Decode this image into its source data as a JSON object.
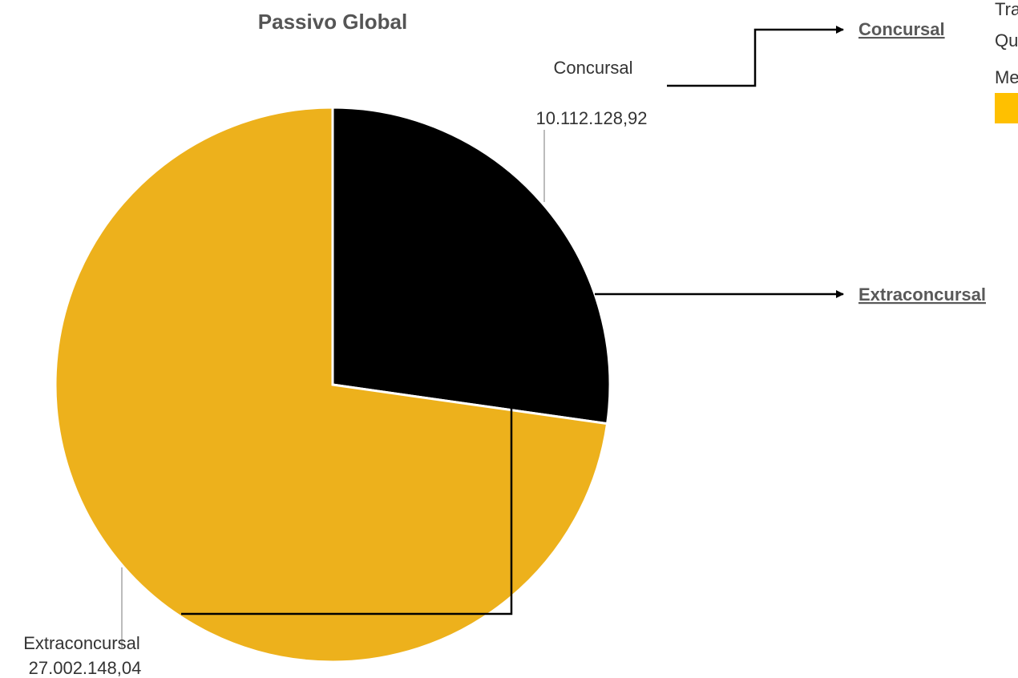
{
  "chart_data": {
    "type": "pie",
    "title": "Passivo Global",
    "categories": [
      "Concursal",
      "Extraconcursal"
    ],
    "values": [
      10112128.92,
      27002148.04
    ],
    "value_labels": [
      "10.112.128,92",
      "27.002.148,04"
    ],
    "colors": [
      "#000000",
      "#EDB11C"
    ],
    "legend": "none"
  },
  "links": {
    "concursal": "Concursal",
    "extraconcursal": "Extraconcursal"
  },
  "side_panel": {
    "line1": "Tra",
    "line2": "Qu",
    "line3": "Me",
    "swatch_color": "#FFC000"
  }
}
